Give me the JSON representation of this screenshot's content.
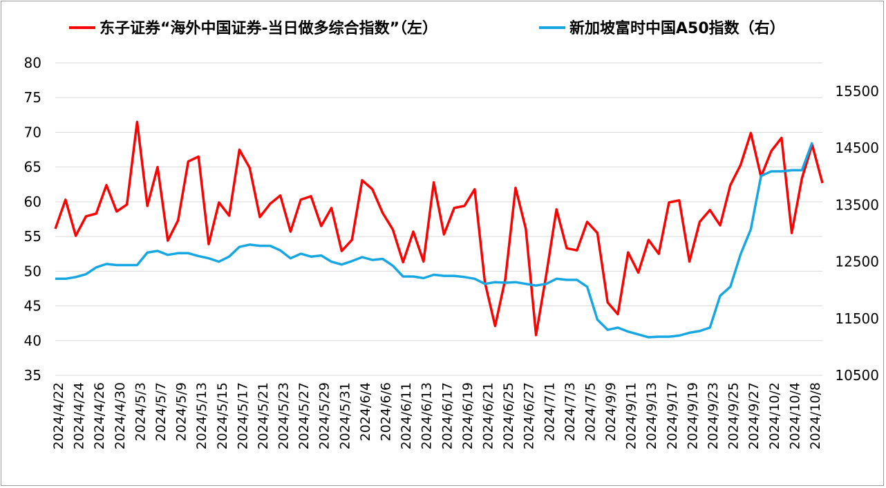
{
  "chart_data": {
    "type": "line",
    "title": "",
    "xlabel": "",
    "ylabel_left": "",
    "ylabel_right": "",
    "ylim_left": [
      35,
      80
    ],
    "ylim_right": [
      10500,
      15500
    ],
    "left_ticks": [
      35,
      40,
      45,
      50,
      55,
      60,
      65,
      70,
      75,
      80
    ],
    "right_ticks": [
      10500,
      11500,
      12500,
      13500,
      14500,
      15500
    ],
    "grid": "horizontal",
    "legend_position": "top",
    "x_tick_labels": [
      "2024/4/22",
      "2024/4/24",
      "2024/4/26",
      "2024/4/30",
      "2024/5/3",
      "2024/5/7",
      "2024/5/9",
      "2024/5/13",
      "2024/5/15",
      "2024/5/17",
      "2024/5/21",
      "2024/5/23",
      "2024/5/27",
      "2024/5/29",
      "2024/5/31",
      "2024/6/4",
      "2024/6/6",
      "2024/6/11",
      "2024/6/13",
      "2024/6/17",
      "2024/6/19",
      "2024/6/21",
      "2024/6/25",
      "2024/6/27",
      "2024/7/1",
      "2024/7/3",
      "2024/7/5",
      "2024/9/9",
      "2024/9/11",
      "2024/9/13",
      "2024/9/17",
      "2024/9/19",
      "2024/9/23",
      "2024/9/25",
      "2024/9/27",
      "2024/10/2",
      "2024/10/4",
      "2024/10/8"
    ],
    "series": [
      {
        "name": "东子证券“海外中国证券-当日做多综合指数”（左）",
        "color": "#ff0000",
        "axis": "left",
        "values": [
          56.1,
          60.3,
          55.1,
          57.9,
          58.3,
          62.4,
          58.6,
          59.6,
          71.5,
          59.4,
          65.0,
          54.4,
          57.3,
          65.8,
          66.5,
          53.9,
          59.9,
          58.0,
          67.5,
          64.9,
          57.8,
          59.7,
          60.9,
          55.7,
          60.3,
          60.8,
          56.5,
          59.1,
          52.9,
          54.5,
          63.1,
          61.8,
          58.4,
          56.0,
          51.3,
          55.7,
          51.4,
          62.8,
          55.3,
          59.1,
          59.4,
          61.8,
          48.4,
          42.1,
          48.9,
          62.0,
          56.1,
          40.8,
          49.5,
          58.9,
          53.3,
          53.0,
          57.1,
          55.5,
          45.5,
          43.8,
          52.7,
          49.8,
          54.5,
          52.5,
          59.9,
          60.2,
          51.4,
          57.1,
          58.8,
          56.6,
          62.4,
          65.3,
          69.9,
          63.6,
          67.3,
          69.2,
          55.5,
          63.4,
          68.2,
          62.7
        ]
      },
      {
        "name": "新加坡富时中国A50指数（右）",
        "color": "#16a7e2",
        "axis": "right",
        "values": [
          12200,
          12200,
          12230,
          12280,
          12400,
          12460,
          12440,
          12440,
          12440,
          12660,
          12690,
          12620,
          12650,
          12650,
          12600,
          12560,
          12500,
          12590,
          12760,
          12800,
          12780,
          12780,
          12700,
          12560,
          12640,
          12590,
          12610,
          12500,
          12450,
          12510,
          12580,
          12530,
          12550,
          12430,
          12240,
          12240,
          12210,
          12270,
          12250,
          12250,
          12230,
          12200,
          12110,
          12140,
          12130,
          12140,
          12110,
          12080,
          12110,
          12200,
          12180,
          12180,
          12060,
          11480,
          11300,
          11340,
          11270,
          11220,
          11170,
          11180,
          11180,
          11200,
          11250,
          11280,
          11340,
          11900,
          12060,
          12630,
          13070,
          14010,
          14090,
          14090,
          14110,
          14110,
          14600,
          null
        ]
      }
    ]
  }
}
